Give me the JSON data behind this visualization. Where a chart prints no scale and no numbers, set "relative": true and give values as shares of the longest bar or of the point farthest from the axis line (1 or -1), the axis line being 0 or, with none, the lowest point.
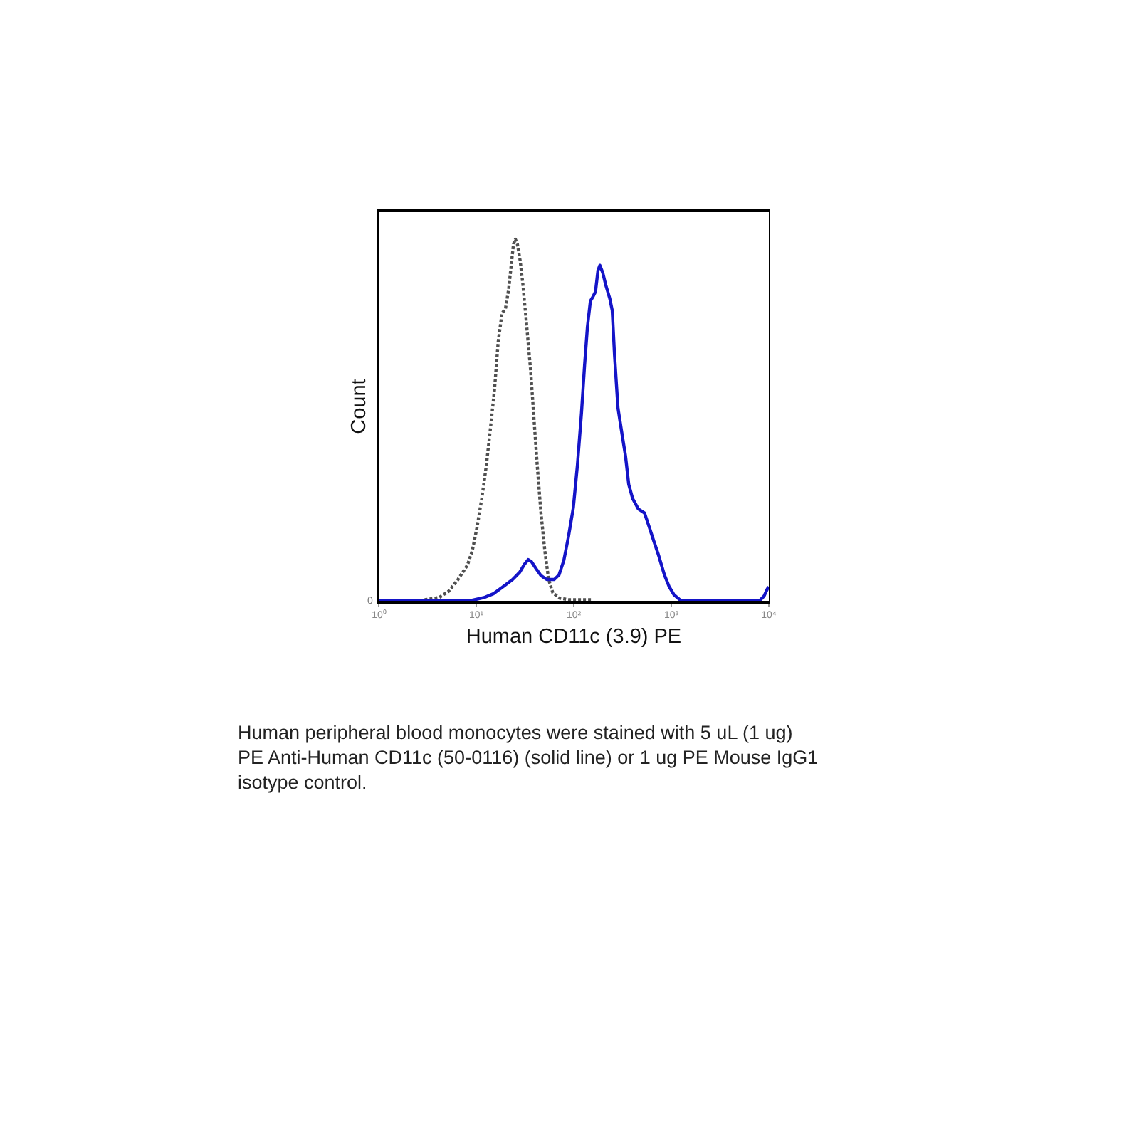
{
  "chart_data": {
    "type": "line",
    "xlabel": "Human CD11c (3.9) PE",
    "ylabel": "Count",
    "relative": true,
    "log": "x",
    "tick_labels": "x",
    "xlim": [
      1,
      10000
    ],
    "xticks": [
      {
        "value": 1,
        "label": "10⁰"
      },
      {
        "value": 10,
        "label": "10¹"
      },
      {
        "value": 100,
        "label": "10²"
      },
      {
        "value": 1000,
        "label": "10³"
      },
      {
        "value": 10000,
        "label": "10⁴"
      }
    ],
    "series": [
      {
        "color": "#505050",
        "line_style": "dotted",
        "x": [
          2.96,
          4.15,
          5.19,
          6.5,
          8.13,
          9.1,
          10.2,
          11.4,
          12.7,
          14.2,
          15.4,
          16.8,
          18.4,
          19.9,
          21.5,
          23.1,
          24.1,
          25.2,
          26.4,
          28.2,
          30.1,
          33.0,
          36.1,
          39.0,
          42.2,
          46.1,
          50.5,
          55.2,
          61.1,
          72.3,
          90.4,
          150
        ],
        "values": [
          0.003,
          0.009,
          0.026,
          0.059,
          0.099,
          0.138,
          0.204,
          0.283,
          0.375,
          0.493,
          0.586,
          0.717,
          0.796,
          0.807,
          0.862,
          0.941,
          0.987,
          1.0,
          0.987,
          0.941,
          0.875,
          0.757,
          0.638,
          0.507,
          0.375,
          0.243,
          0.138,
          0.059,
          0.022,
          0.007,
          0.003,
          0.003
        ]
      },
      {
        "color": "#1414c8",
        "line_style": "solid",
        "x": [
          1,
          8.59,
          12.0,
          15.1,
          18.8,
          23.6,
          27.9,
          31.2,
          34.1,
          36.9,
          41.3,
          46.1,
          52.8,
          63.1,
          70.6,
          79.1,
          88.3,
          98.9,
          109,
          120,
          129,
          138,
          148,
          158,
          167,
          177,
          185,
          198,
          212,
          234,
          248,
          262,
          284,
          310,
          339,
          366,
          401,
          459,
          531,
          594,
          664,
          743,
          849,
          951,
          1064,
          1259,
          8000,
          8933,
          9661,
          10000
        ],
        "values": [
          0,
          0,
          0.009,
          0.02,
          0.039,
          0.059,
          0.079,
          0.101,
          0.114,
          0.108,
          0.088,
          0.07,
          0.059,
          0.059,
          0.072,
          0.112,
          0.178,
          0.257,
          0.375,
          0.52,
          0.651,
          0.757,
          0.829,
          0.842,
          0.855,
          0.914,
          0.928,
          0.908,
          0.875,
          0.836,
          0.803,
          0.678,
          0.533,
          0.467,
          0.401,
          0.322,
          0.283,
          0.254,
          0.243,
          0.204,
          0.164,
          0.125,
          0.072,
          0.039,
          0.017,
          0,
          0,
          0.013,
          0.033,
          0.039
        ]
      }
    ],
    "annotations": [
      {
        "text": "0",
        "x": 1,
        "y": 0
      },
      "Human peripheral blood monocytes were stained with 5 uL (1 ug) PE Anti-Human CD11c (50-0116) (solid line) or 1 ug PE Mouse IgG1 isotype control."
    ]
  }
}
